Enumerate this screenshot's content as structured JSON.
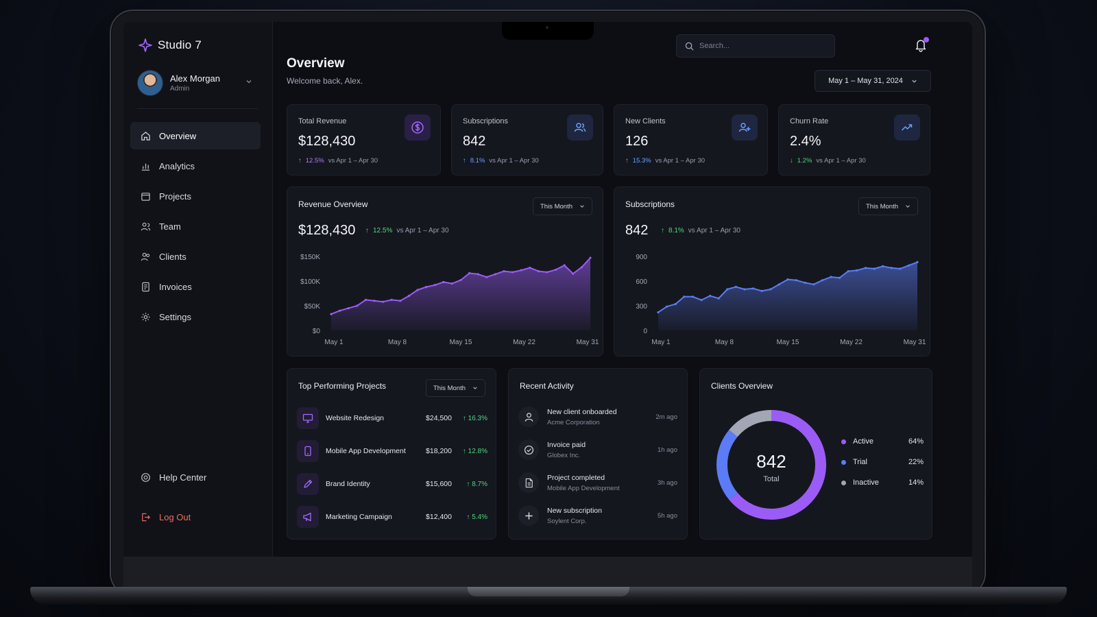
{
  "app": {
    "brand": "Studio 7"
  },
  "profile": {
    "name": "Alex Morgan",
    "role": "Admin"
  },
  "nav": {
    "items": [
      {
        "label": "Overview",
        "icon": "home-icon",
        "active": true
      },
      {
        "label": "Analytics",
        "icon": "bar-chart-icon"
      },
      {
        "label": "Projects",
        "icon": "folder-icon"
      },
      {
        "label": "Team",
        "icon": "team-icon"
      },
      {
        "label": "Clients",
        "icon": "clients-icon"
      },
      {
        "label": "Invoices",
        "icon": "invoice-icon"
      },
      {
        "label": "Settings",
        "icon": "gear-icon"
      }
    ],
    "help": "Help Center",
    "logout": "Log Out"
  },
  "header": {
    "title": "Overview",
    "subtitle": "Welcome back, Alex.",
    "search_placeholder": "Search...",
    "date_range": "May 1 – May 31, 2024"
  },
  "kpis": [
    {
      "label": "Total Revenue",
      "value": "$128,430",
      "delta": "12.5%",
      "direction": "up",
      "compare": "vs Apr 1 – Apr 30",
      "icon": "dollar-icon"
    },
    {
      "label": "Subscriptions",
      "value": "842",
      "delta": "8.1%",
      "direction": "up",
      "compare": "vs Apr 1 – Apr 30",
      "icon": "users-icon"
    },
    {
      "label": "New Clients",
      "value": "126",
      "delta": "15.3%",
      "direction": "up",
      "compare": "vs Apr 1 – Apr 30",
      "icon": "user-plus-icon"
    },
    {
      "label": "Churn Rate",
      "value": "2.4%",
      "delta": "1.2%",
      "direction": "down",
      "compare": "vs Apr 1 – Apr 30",
      "icon": "trend-icon"
    }
  ],
  "revenue_overview": {
    "title": "Revenue Overview",
    "period": "This Month",
    "value": "$128,430",
    "delta": "12.5%",
    "compare": "vs Apr 1 – Apr 30"
  },
  "subscriptions_overview": {
    "title": "Subscriptions",
    "period": "This Month",
    "value": "842",
    "delta": "8.1%",
    "compare": "vs Apr 1 – Apr 30"
  },
  "chart_data": [
    {
      "type": "area",
      "title": "Revenue Overview",
      "x_ticks": [
        "May 1",
        "May 8",
        "May 15",
        "May 22",
        "May 31"
      ],
      "y_ticks": [
        "$0",
        "$50K",
        "$100K",
        "$150K"
      ],
      "ylim": [
        0,
        150000
      ],
      "x": [
        1,
        2,
        3,
        4,
        5,
        6,
        7,
        8,
        9,
        10,
        11,
        12,
        13,
        14,
        15,
        16,
        17,
        18,
        19,
        20,
        21,
        22,
        23,
        24,
        25,
        26,
        27,
        28,
        29,
        30,
        31
      ],
      "values": [
        33000,
        40000,
        45000,
        50000,
        62000,
        60000,
        58000,
        62000,
        60000,
        70000,
        82000,
        88000,
        92000,
        98000,
        95000,
        102000,
        116000,
        114000,
        108000,
        114000,
        120000,
        118000,
        122000,
        127000,
        120000,
        118000,
        123000,
        132000,
        115000,
        128000,
        147000
      ],
      "color": "#9b5cf6",
      "grid": false
    },
    {
      "type": "area",
      "title": "Subscriptions",
      "x_ticks": [
        "May 1",
        "May 8",
        "May 15",
        "May 22",
        "May 31"
      ],
      "y_ticks": [
        "0",
        "300",
        "600",
        "900"
      ],
      "ylim": [
        0,
        900
      ],
      "x": [
        1,
        2,
        3,
        4,
        5,
        6,
        7,
        8,
        9,
        10,
        11,
        12,
        13,
        14,
        15,
        16,
        17,
        18,
        19,
        20,
        21,
        22,
        23,
        24,
        25,
        26,
        27,
        28,
        29,
        30,
        31
      ],
      "values": [
        220,
        290,
        320,
        410,
        410,
        370,
        420,
        390,
        500,
        530,
        500,
        510,
        480,
        500,
        560,
        620,
        610,
        580,
        560,
        610,
        650,
        640,
        720,
        730,
        760,
        750,
        780,
        760,
        750,
        790,
        830
      ],
      "color": "#5b7cf6",
      "grid": false
    },
    {
      "type": "pie",
      "title": "Clients Overview",
      "center_value": "842",
      "center_label": "Total",
      "categories": [
        "Active",
        "Trial",
        "Inactive"
      ],
      "values": [
        64,
        22,
        14
      ],
      "colors": [
        "#9b5cf6",
        "#5b7cf6",
        "#a3a6b4"
      ]
    }
  ],
  "top_projects": {
    "title": "Top Performing Projects",
    "period": "This Month",
    "items": [
      {
        "name": "Website Redesign",
        "amount": "$24,500",
        "delta": "16.3%",
        "icon": "monitor-icon"
      },
      {
        "name": "Mobile App Development",
        "amount": "$18,200",
        "delta": "12.8%",
        "icon": "phone-icon"
      },
      {
        "name": "Brand Identity",
        "amount": "$15,600",
        "delta": "8.7%",
        "icon": "pen-icon"
      },
      {
        "name": "Marketing Campaign",
        "amount": "$12,400",
        "delta": "5.4%",
        "icon": "megaphone-icon"
      }
    ]
  },
  "recent_activity": {
    "title": "Recent Activity",
    "items": [
      {
        "title": "New client onboarded",
        "sub": "Acme Corporation",
        "time": "2m ago",
        "icon": "user-icon"
      },
      {
        "title": "Invoice paid",
        "sub": "Globex Inc.",
        "time": "1h ago",
        "icon": "check-circle-icon"
      },
      {
        "title": "Project completed",
        "sub": "Mobile App Development",
        "time": "3h ago",
        "icon": "document-icon"
      },
      {
        "title": "New subscription",
        "sub": "Soylent Corp.",
        "time": "5h ago",
        "icon": "plus-icon"
      }
    ]
  },
  "clients_overview": {
    "title": "Clients Overview",
    "total": "842",
    "total_label": "Total",
    "legend": [
      {
        "label": "Active",
        "pct": "64%",
        "color": "#9b5cf6"
      },
      {
        "label": "Trial",
        "pct": "22%",
        "color": "#5b7cf6"
      },
      {
        "label": "Inactive",
        "pct": "14%",
        "color": "#a3a6b4"
      }
    ]
  }
}
